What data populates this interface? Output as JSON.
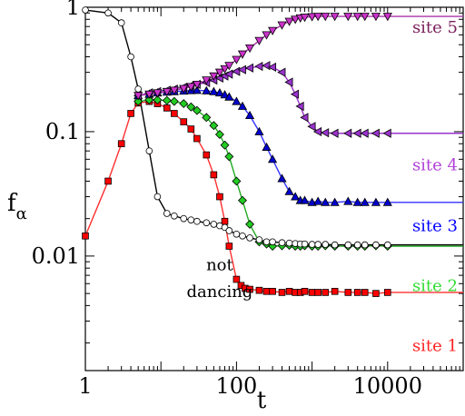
{
  "chart_data": {
    "type": "line",
    "xlabel": "t",
    "ylabel": "f",
    "ylabel_subscript": "α",
    "x_scale": "log",
    "y_scale": "log",
    "xlim": [
      1,
      100000
    ],
    "ylim": [
      0.0012,
      1
    ],
    "x_tick_labels": [
      {
        "value": 1,
        "label": "1"
      },
      {
        "value": 100,
        "label": "100"
      },
      {
        "value": 10000,
        "label": "10000"
      }
    ],
    "y_tick_labels": [
      {
        "value": 1,
        "label": "1"
      },
      {
        "value": 0.1,
        "label": "0.1"
      },
      {
        "value": 0.01,
        "label": "0.01"
      }
    ],
    "legend": "none",
    "annotations": [
      {
        "text": "not",
        "x": 60,
        "y": 0.0085,
        "color": "#000000"
      },
      {
        "text": "dancing",
        "x": 60,
        "y": 0.0052,
        "color": "#000000"
      },
      {
        "text": "site 5",
        "x": 30000,
        "y": 0.69,
        "color": "#7a1f5c"
      },
      {
        "text": "site 4",
        "x": 30000,
        "y": 0.054,
        "color": "#b040d8"
      },
      {
        "text": "site 3",
        "x": 30000,
        "y": 0.0175,
        "color": "#0000ff"
      },
      {
        "text": "site 2",
        "x": 30000,
        "y": 0.0058,
        "color": "#33dd33"
      },
      {
        "text": "site 1",
        "x": 30000,
        "y": 0.0019,
        "color": "#ff2222"
      }
    ],
    "series": [
      {
        "color": "#ff0000",
        "line_color": "#ff3030",
        "marker": "square",
        "x": [
          1,
          2,
          3,
          4,
          5,
          7,
          9,
          12,
          15,
          20,
          25,
          30,
          40,
          50,
          60,
          70,
          80,
          100,
          115,
          130,
          150,
          200,
          250,
          300,
          400,
          500,
          600,
          700,
          800,
          1000,
          1200,
          1500,
          2000,
          3000,
          4000,
          5000,
          7000,
          10000
        ],
        "y": [
          0.0145,
          0.04,
          0.08,
          0.14,
          0.17,
          0.175,
          0.168,
          0.155,
          0.14,
          0.12,
          0.105,
          0.088,
          0.065,
          0.045,
          0.03,
          0.019,
          0.012,
          0.0065,
          0.0058,
          0.0055,
          0.0054,
          0.0053,
          0.0052,
          0.0052,
          0.0051,
          0.0052,
          0.0051,
          0.0051,
          0.0052,
          0.0051,
          0.0051,
          0.0051,
          0.0052,
          0.0051,
          0.0051,
          0.0051,
          0.005,
          0.0051
        ]
      },
      {
        "color": "#22cc22",
        "line_color": "#22aa22",
        "marker": "diamond",
        "x": [
          5,
          7,
          9,
          12,
          15,
          20,
          25,
          30,
          40,
          50,
          60,
          70,
          80,
          100,
          120,
          150,
          200,
          250,
          300,
          400,
          500,
          600,
          700,
          800,
          1000,
          1200,
          1500,
          2000,
          3000,
          4000,
          5000,
          7000,
          10000
        ],
        "y": [
          0.175,
          0.18,
          0.18,
          0.178,
          0.175,
          0.168,
          0.158,
          0.148,
          0.13,
          0.112,
          0.095,
          0.078,
          0.063,
          0.04,
          0.028,
          0.018,
          0.013,
          0.0125,
          0.012,
          0.0121,
          0.0122,
          0.012,
          0.012,
          0.0121,
          0.012,
          0.012,
          0.0121,
          0.012,
          0.012,
          0.012,
          0.012,
          0.0121,
          0.012
        ]
      },
      {
        "color": "#0000cc",
        "line_color": "#3333ff",
        "marker": "triangle-up",
        "x": [
          5,
          7,
          9,
          12,
          15,
          20,
          25,
          30,
          40,
          50,
          60,
          70,
          80,
          100,
          120,
          150,
          200,
          250,
          300,
          400,
          500,
          600,
          700,
          800,
          1000,
          1200,
          1500,
          2000,
          3000,
          4000,
          5000,
          7000,
          10000
        ],
        "y": [
          0.195,
          0.2,
          0.205,
          0.208,
          0.21,
          0.212,
          0.214,
          0.215,
          0.213,
          0.21,
          0.205,
          0.198,
          0.19,
          0.175,
          0.16,
          0.135,
          0.1,
          0.075,
          0.06,
          0.042,
          0.033,
          0.03,
          0.028,
          0.028,
          0.027,
          0.0275,
          0.027,
          0.027,
          0.0275,
          0.027,
          0.027,
          0.027,
          0.027
        ]
      },
      {
        "color": "#9933cc",
        "line_color": "#9933cc",
        "marker": "triangle-left",
        "x": [
          5,
          7,
          9,
          12,
          15,
          20,
          25,
          30,
          40,
          50,
          60,
          70,
          80,
          100,
          120,
          150,
          200,
          250,
          300,
          400,
          500,
          600,
          700,
          800,
          1000,
          1200,
          1500,
          2000,
          3000,
          4000,
          5000,
          7000,
          10000
        ],
        "y": [
          0.195,
          0.205,
          0.21,
          0.215,
          0.22,
          0.228,
          0.235,
          0.24,
          0.248,
          0.26,
          0.27,
          0.28,
          0.29,
          0.305,
          0.315,
          0.325,
          0.335,
          0.34,
          0.33,
          0.3,
          0.25,
          0.2,
          0.16,
          0.13,
          0.11,
          0.1,
          0.098,
          0.097,
          0.097,
          0.097,
          0.097,
          0.097,
          0.097
        ]
      },
      {
        "color": "#cc33cc",
        "line_color": "#aa33aa",
        "marker": "triangle-down",
        "x": [
          5,
          7,
          9,
          12,
          15,
          20,
          25,
          30,
          40,
          50,
          60,
          70,
          80,
          100,
          120,
          150,
          200,
          250,
          300,
          400,
          500,
          600,
          700,
          800,
          1000,
          1200,
          1500,
          2000,
          3000,
          4000,
          5000,
          7000,
          10000
        ],
        "y": [
          0.195,
          0.2,
          0.205,
          0.21,
          0.215,
          0.222,
          0.23,
          0.24,
          0.26,
          0.28,
          0.3,
          0.32,
          0.34,
          0.38,
          0.42,
          0.47,
          0.54,
          0.6,
          0.65,
          0.72,
          0.77,
          0.8,
          0.82,
          0.83,
          0.84,
          0.845,
          0.845,
          0.845,
          0.845,
          0.845,
          0.845,
          0.845,
          0.845
        ]
      },
      {
        "color": "#000000",
        "line_color": "#000000",
        "marker": "circle-open",
        "x": [
          1,
          2,
          3,
          4,
          5,
          7,
          9,
          12,
          15,
          20,
          25,
          30,
          40,
          50,
          60,
          70,
          80,
          100,
          120,
          150,
          200,
          250,
          300,
          400,
          500,
          600,
          700,
          800,
          1000,
          1200,
          1500,
          2000,
          3000,
          4000,
          5000,
          7000,
          10000
        ],
        "y": [
          0.95,
          0.9,
          0.75,
          0.4,
          0.22,
          0.07,
          0.03,
          0.022,
          0.021,
          0.02,
          0.0195,
          0.019,
          0.0185,
          0.018,
          0.0175,
          0.017,
          0.016,
          0.015,
          0.0145,
          0.014,
          0.0135,
          0.013,
          0.013,
          0.0128,
          0.0127,
          0.0126,
          0.0125,
          0.0125,
          0.0124,
          0.0124,
          0.0124,
          0.0123,
          0.0123,
          0.0123,
          0.0123,
          0.0123,
          0.0123
        ]
      }
    ]
  }
}
